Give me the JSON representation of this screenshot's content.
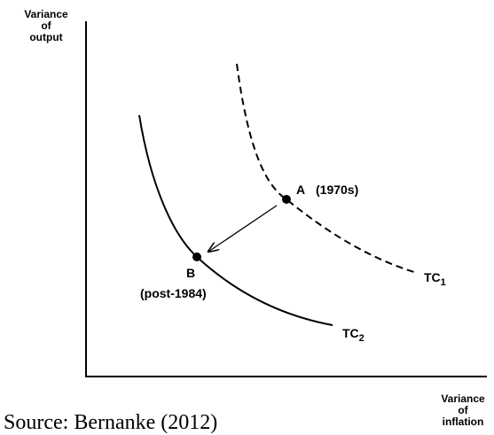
{
  "y_axis_label": [
    "Variance",
    "of",
    "output"
  ],
  "x_axis_label": [
    "Variance",
    "of",
    "inflation"
  ],
  "point_a": {
    "name": "A",
    "note": "(1970s)"
  },
  "point_b": {
    "name": "B",
    "note": "(post-1984)"
  },
  "curve_1": {
    "label": "TC",
    "subscript": "1"
  },
  "curve_2": {
    "label": "TC",
    "subscript": "2"
  },
  "source": "Source: Bernanke (2012)"
}
